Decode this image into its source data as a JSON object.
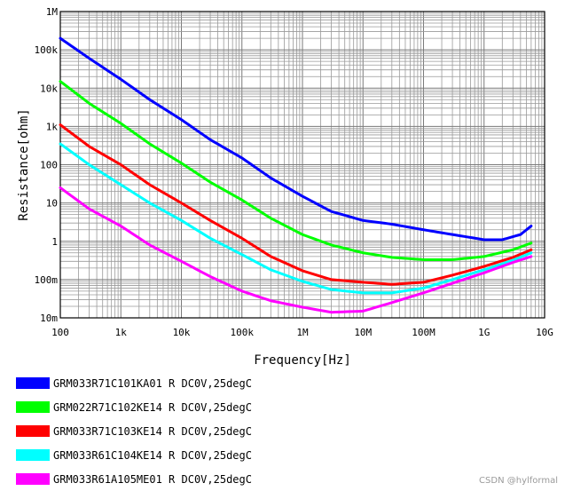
{
  "chart_data": {
    "type": "line",
    "xlabel": "Frequency[Hz]",
    "ylabel": "Resistance[ohm]",
    "xscale": "log",
    "yscale": "log",
    "xlim": [
      100,
      10000000000
    ],
    "ylim": [
      0.01,
      1000000
    ],
    "grid": true,
    "legend_position": "bottom",
    "x_ticks": [
      {
        "value": 100,
        "label": "100"
      },
      {
        "value": 1000,
        "label": "1k"
      },
      {
        "value": 10000,
        "label": "10k"
      },
      {
        "value": 100000,
        "label": "100k"
      },
      {
        "value": 1000000,
        "label": "1M"
      },
      {
        "value": 10000000,
        "label": "10M"
      },
      {
        "value": 100000000,
        "label": "100M"
      },
      {
        "value": 1000000000,
        "label": "1G"
      },
      {
        "value": 10000000000,
        "label": "10G"
      }
    ],
    "y_ticks": [
      {
        "value": 1000000,
        "label": "1M"
      },
      {
        "value": 100000,
        "label": "100k"
      },
      {
        "value": 10000,
        "label": "10k"
      },
      {
        "value": 1000,
        "label": "1k"
      },
      {
        "value": 100,
        "label": "100"
      },
      {
        "value": 10,
        "label": "10"
      },
      {
        "value": 1,
        "label": "1"
      },
      {
        "value": 0.1,
        "label": "100m"
      },
      {
        "value": 0.01,
        "label": "10m"
      }
    ],
    "series": [
      {
        "name": "GRM033R71C101KA01 R DC0V,25degC",
        "color": "#0000ff",
        "points": [
          [
            100,
            200000
          ],
          [
            300,
            60000
          ],
          [
            1000,
            17000
          ],
          [
            3000,
            5000
          ],
          [
            10000,
            1500
          ],
          [
            30000,
            450
          ],
          [
            100000,
            150
          ],
          [
            300000,
            45
          ],
          [
            1000000,
            15
          ],
          [
            3000000,
            6
          ],
          [
            10000000,
            3.5
          ],
          [
            30000000,
            2.8
          ],
          [
            100000000,
            2
          ],
          [
            300000000,
            1.5
          ],
          [
            1000000000,
            1.1
          ],
          [
            2000000000,
            1.1
          ],
          [
            4000000000,
            1.5
          ],
          [
            6000000000,
            2.5
          ]
        ]
      },
      {
        "name": "GRM022R71C102KE14 R DC0V,25degC",
        "color": "#00ff00",
        "points": [
          [
            100,
            15000
          ],
          [
            300,
            4000
          ],
          [
            1000,
            1200
          ],
          [
            3000,
            350
          ],
          [
            10000,
            110
          ],
          [
            30000,
            35
          ],
          [
            100000,
            12
          ],
          [
            300000,
            4
          ],
          [
            1000000,
            1.5
          ],
          [
            3000000,
            0.8
          ],
          [
            10000000,
            0.5
          ],
          [
            30000000,
            0.38
          ],
          [
            100000000,
            0.33
          ],
          [
            300000000,
            0.33
          ],
          [
            1000000000,
            0.4
          ],
          [
            3000000000,
            0.6
          ],
          [
            6000000000,
            0.9
          ]
        ]
      },
      {
        "name": "GRM033R71C103KE14 R DC0V,25degC",
        "color": "#ff0000",
        "points": [
          [
            100,
            1100
          ],
          [
            300,
            300
          ],
          [
            1000,
            100
          ],
          [
            3000,
            30
          ],
          [
            10000,
            10
          ],
          [
            30000,
            3.5
          ],
          [
            100000,
            1.2
          ],
          [
            300000,
            0.4
          ],
          [
            1000000,
            0.17
          ],
          [
            3000000,
            0.1
          ],
          [
            10000000,
            0.085
          ],
          [
            30000000,
            0.075
          ],
          [
            100000000,
            0.085
          ],
          [
            300000000,
            0.13
          ],
          [
            1000000000,
            0.22
          ],
          [
            3000000000,
            0.38
          ],
          [
            6000000000,
            0.6
          ]
        ]
      },
      {
        "name": "GRM033R61C104KE14 R DC0V,25degC",
        "color": "#00ffff",
        "points": [
          [
            100,
            350
          ],
          [
            300,
            100
          ],
          [
            1000,
            30
          ],
          [
            3000,
            10
          ],
          [
            10000,
            3.5
          ],
          [
            30000,
            1.2
          ],
          [
            100000,
            0.45
          ],
          [
            300000,
            0.18
          ],
          [
            1000000,
            0.09
          ],
          [
            3000000,
            0.055
          ],
          [
            10000000,
            0.045
          ],
          [
            30000000,
            0.045
          ],
          [
            100000000,
            0.06
          ],
          [
            300000000,
            0.1
          ],
          [
            1000000000,
            0.18
          ],
          [
            3000000000,
            0.32
          ],
          [
            6000000000,
            0.5
          ]
        ]
      },
      {
        "name": "GRM033R61A105ME01 R DC0V,25degC",
        "color": "#ff00ff",
        "points": [
          [
            100,
            25
          ],
          [
            300,
            7
          ],
          [
            1000,
            2.5
          ],
          [
            3000,
            0.8
          ],
          [
            10000,
            0.3
          ],
          [
            30000,
            0.12
          ],
          [
            100000,
            0.05
          ],
          [
            300000,
            0.028
          ],
          [
            1000000,
            0.019
          ],
          [
            3000000,
            0.014
          ],
          [
            10000000,
            0.015
          ],
          [
            30000000,
            0.025
          ],
          [
            100000000,
            0.045
          ],
          [
            300000000,
            0.08
          ],
          [
            1000000000,
            0.15
          ],
          [
            3000000000,
            0.28
          ],
          [
            6000000000,
            0.4
          ]
        ]
      }
    ]
  },
  "watermark": "CSDN @hylformal"
}
